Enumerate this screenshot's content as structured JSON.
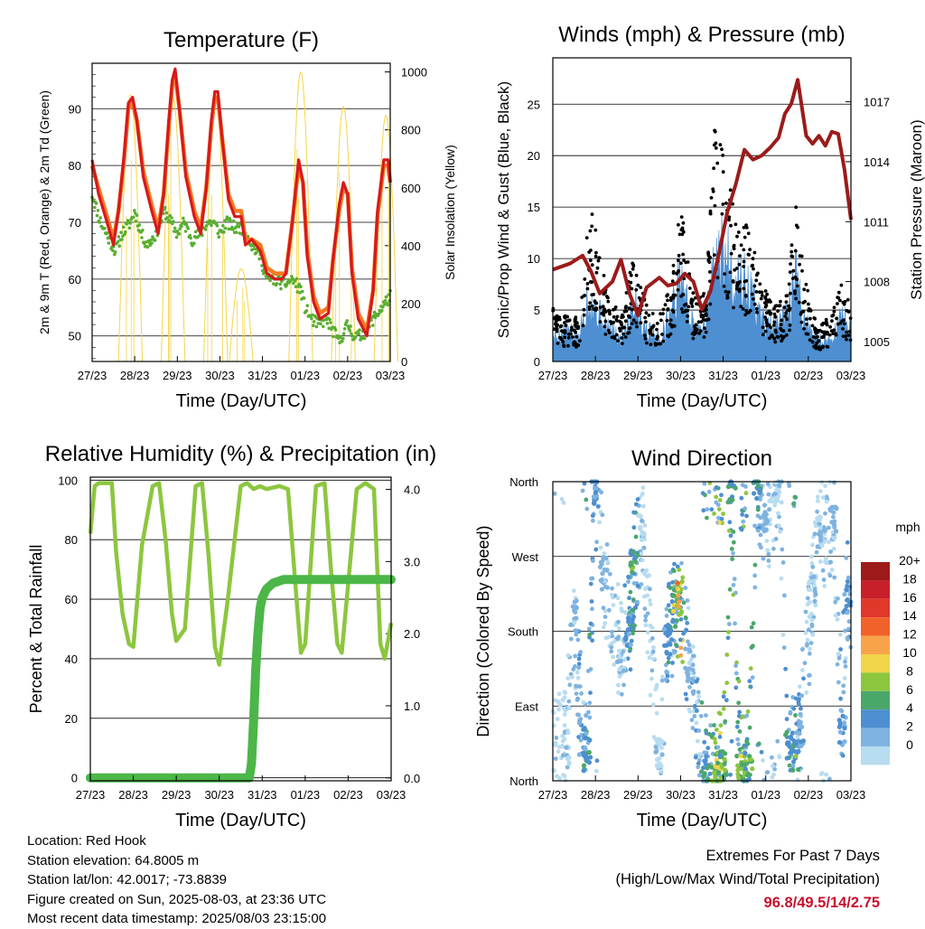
{
  "panels": {
    "temperature": {
      "title": "Temperature (F)",
      "ylabel_left": "2m & 9m T (Red, Orange) & 2m Td (Green)",
      "ylabel_right": "Solar Insolation (Yellow)",
      "xlabel": "Time (Day/UTC)"
    },
    "winds": {
      "title": "Winds (mph) & Pressure (mb)",
      "ylabel_left": "Sonic/Prop Wind & Gust (Blue, Black)",
      "ylabel_right": "Station Pressure (Maroon)",
      "xlabel": "Time (Day/UTC)"
    },
    "humidity": {
      "title": "Relative Humidity (%) & Precipitation (in)",
      "ylabel_left": "Percent & Total Rainfall",
      "xlabel": "Time (Day/UTC)"
    },
    "direction": {
      "title": "Wind Direction",
      "ylabel_left": "Direction (Colored By Speed)",
      "xlabel": "Time (Day/UTC)",
      "legend_unit": "mph"
    }
  },
  "colors": {
    "temp_2m": "#d7191c",
    "temp_9m": "#f47a20",
    "dewpoint": "#5aae32",
    "solar": "#f5d547",
    "wind_sonic": "#4d8fd0",
    "wind_gust": "#000000",
    "pressure": "#9b1b1b",
    "rh": "#8cc63f",
    "rain": "#4cb648"
  },
  "chart_data": [
    {
      "type": "line",
      "title": "Temperature (F)",
      "xlabel": "Time (Day/UTC)",
      "ylabel": "2m & 9m T (Red, Orange) & 2m Td (Green)",
      "y2label": "Solar Insolation (Yellow)",
      "x_ticks": [
        "27/23",
        "28/23",
        "29/23",
        "30/23",
        "31/23",
        "01/23",
        "02/23",
        "03/23"
      ],
      "xlim": [
        0,
        7
      ],
      "ylim": [
        45.5,
        98
      ],
      "y_ticks": [
        50,
        60,
        70,
        80,
        90
      ],
      "y2lim": [
        0,
        1030
      ],
      "y2_ticks": [
        0,
        200,
        400,
        600,
        800,
        1000
      ],
      "grid": true,
      "series": [
        {
          "name": "2m T (Red)",
          "axis": "left",
          "style": "line",
          "x": [
            0,
            0.15,
            0.35,
            0.5,
            0.62,
            0.75,
            0.85,
            0.95,
            1.05,
            1.2,
            1.4,
            1.55,
            1.68,
            1.8,
            1.88,
            1.95,
            2.05,
            2.2,
            2.4,
            2.55,
            2.68,
            2.8,
            2.88,
            2.95,
            3.05,
            3.2,
            3.35,
            3.5,
            3.6,
            3.75,
            3.95,
            4.1,
            4.3,
            4.45,
            4.55,
            4.7,
            4.85,
            4.95,
            5.05,
            5.2,
            5.35,
            5.55,
            5.65,
            5.8,
            5.9,
            6.0,
            6.1,
            6.25,
            6.45,
            6.6,
            6.7,
            6.85,
            6.95,
            7.0
          ],
          "y": [
            81,
            75,
            70,
            66,
            72,
            82,
            91,
            92,
            88,
            78,
            72,
            68,
            75,
            88,
            95,
            97,
            90,
            78,
            71,
            68,
            76,
            88,
            93,
            93,
            85,
            74,
            71,
            71,
            66,
            67,
            65,
            61,
            60,
            60,
            61,
            70,
            81,
            77,
            64,
            56,
            53,
            54,
            63,
            73,
            77,
            75,
            61,
            53,
            50,
            58,
            72,
            81,
            81,
            77
          ]
        },
        {
          "name": "9m T (Orange)",
          "axis": "left",
          "style": "line",
          "x": [
            0,
            0.15,
            0.35,
            0.5,
            0.62,
            0.75,
            0.85,
            0.95,
            1.05,
            1.2,
            1.4,
            1.55,
            1.68,
            1.8,
            1.88,
            1.95,
            2.05,
            2.2,
            2.4,
            2.55,
            2.68,
            2.8,
            2.88,
            2.95,
            3.05,
            3.2,
            3.35,
            3.5,
            3.6,
            3.75,
            3.95,
            4.1,
            4.3,
            4.45,
            4.55,
            4.7,
            4.85,
            4.95,
            5.05,
            5.2,
            5.35,
            5.55,
            5.65,
            5.8,
            5.9,
            6.0,
            6.1,
            6.25,
            6.45,
            6.6,
            6.7,
            6.85,
            6.95,
            7.0
          ],
          "y": [
            80,
            76,
            71,
            67,
            72,
            81,
            90,
            91,
            88,
            79,
            73,
            69,
            75,
            87,
            94,
            96,
            90,
            79,
            72,
            69,
            76,
            87,
            92,
            92,
            85,
            75,
            72,
            72,
            67,
            67,
            66,
            62,
            61,
            61,
            61,
            70,
            80,
            77,
            65,
            57,
            54,
            55,
            63,
            72,
            76,
            75,
            62,
            54,
            51,
            58,
            71,
            80,
            80,
            77
          ]
        },
        {
          "name": "2m Td (Green)",
          "axis": "left",
          "style": "points",
          "x": [
            0,
            0.2,
            0.4,
            0.55,
            0.7,
            0.9,
            1.0,
            1.15,
            1.3,
            1.5,
            1.7,
            1.85,
            2.0,
            2.15,
            2.35,
            2.55,
            2.7,
            2.85,
            3.0,
            3.15,
            3.35,
            3.55,
            3.75,
            3.95,
            4.1,
            4.3,
            4.5,
            4.7,
            4.9,
            5.0,
            5.15,
            5.3,
            5.5,
            5.65,
            5.8,
            6.0,
            6.15,
            6.3,
            6.45,
            6.6,
            6.8,
            7.0
          ],
          "y": [
            75,
            70,
            67,
            65,
            68,
            70,
            72,
            68,
            66,
            68,
            72,
            70,
            68,
            70,
            67,
            68,
            70,
            70,
            68,
            70,
            69,
            69,
            66,
            64,
            60,
            60,
            59,
            60,
            58,
            55,
            53,
            52,
            53,
            51,
            49,
            52,
            50,
            50,
            51,
            53,
            55,
            57
          ]
        },
        {
          "name": "Solar Insolation (Yellow)",
          "axis": "right",
          "style": "line",
          "peak_days": [
            0.9,
            1.9,
            2.9,
            3.5,
            4.9,
            5.9,
            6.9
          ],
          "peak_values": [
            920,
            910,
            920,
            320,
            1000,
            880,
            850
          ]
        }
      ]
    },
    {
      "type": "scatter",
      "title": "Winds (mph) & Pressure (mb)",
      "xlabel": "Time (Day/UTC)",
      "ylabel": "Sonic/Prop Wind & Gust (Blue, Black)",
      "y2label": "Station Pressure (Maroon)",
      "x_ticks": [
        "27/23",
        "28/23",
        "29/23",
        "30/23",
        "31/23",
        "01/23",
        "02/23",
        "03/23"
      ],
      "xlim": [
        0,
        7
      ],
      "ylim": [
        0,
        29.5
      ],
      "y_ticks": [
        0,
        5,
        10,
        15,
        20,
        25
      ],
      "y2lim": [
        1004,
        1019.2
      ],
      "y2_ticks": [
        1005,
        1008,
        1011,
        1014,
        1017
      ],
      "grid": true,
      "series": [
        {
          "name": "Sonic/Prop Wind (Blue)",
          "axis": "left",
          "style": "filled",
          "x": [
            0,
            0.3,
            0.6,
            0.8,
            1.0,
            1.3,
            1.6,
            1.9,
            2.2,
            2.5,
            2.8,
            3.0,
            3.3,
            3.6,
            3.8,
            4.0,
            4.3,
            4.6,
            4.9,
            5.2,
            5.5,
            5.7,
            5.9,
            6.2,
            6.5,
            6.8,
            7.0
          ],
          "y": [
            2,
            3,
            2,
            6,
            5,
            3,
            2,
            6,
            3,
            2,
            5,
            8,
            3,
            4,
            9,
            10,
            8,
            7,
            4,
            3,
            4,
            8,
            4,
            2,
            2,
            4,
            3
          ]
        },
        {
          "name": "Gust (Black)",
          "axis": "left",
          "style": "points",
          "x": [
            0,
            0.3,
            0.6,
            0.8,
            0.95,
            1.3,
            1.6,
            1.9,
            2.2,
            2.5,
            2.8,
            3.0,
            3.3,
            3.6,
            3.8,
            4.0,
            4.3,
            4.6,
            4.9,
            5.2,
            5.5,
            5.7,
            5.9,
            6.2,
            6.5,
            6.8,
            7.0
          ],
          "y": [
            5,
            4,
            4,
            11,
            14,
            6,
            4,
            10,
            5,
            4,
            8,
            14,
            6,
            6,
            22,
            19,
            13,
            12,
            7,
            5,
            6,
            15,
            8,
            3,
            4,
            7,
            5
          ]
        },
        {
          "name": "Station Pressure (Maroon)",
          "axis": "right",
          "style": "line",
          "x": [
            0,
            0.4,
            0.7,
            0.9,
            1.1,
            1.4,
            1.6,
            1.8,
            2.0,
            2.2,
            2.5,
            2.7,
            2.9,
            3.1,
            3.3,
            3.5,
            3.7,
            3.9,
            4.1,
            4.3,
            4.5,
            4.7,
            4.9,
            5.1,
            5.3,
            5.45,
            5.6,
            5.75,
            5.95,
            6.1,
            6.25,
            6.4,
            6.55,
            6.7,
            6.85,
            7.0
          ],
          "y": [
            1008.6,
            1008.9,
            1009.3,
            1008.5,
            1007.4,
            1008.0,
            1009.1,
            1007.4,
            1006.3,
            1007.7,
            1008.2,
            1007.8,
            1007.9,
            1008.4,
            1008.0,
            1006.6,
            1007.5,
            1009.4,
            1011.5,
            1012.9,
            1014.6,
            1014.1,
            1014.3,
            1014.7,
            1015.2,
            1016.4,
            1016.9,
            1018.1,
            1015.3,
            1014.9,
            1015.3,
            1014.8,
            1015.5,
            1015.4,
            1013.6,
            1011.1
          ]
        }
      ]
    },
    {
      "type": "line",
      "title": "Relative Humidity (%) & Precipitation (in)",
      "xlabel": "Time (Day/UTC)",
      "ylabel": "Percent & Total Rainfall",
      "x_ticks": [
        "27/23",
        "28/23",
        "29/23",
        "30/23",
        "31/23",
        "01/23",
        "02/23",
        "03/23"
      ],
      "xlim": [
        0,
        7
      ],
      "ylim": [
        -1,
        101
      ],
      "y_ticks": [
        0,
        20,
        40,
        60,
        80,
        100
      ],
      "y2lim": [
        -0.04,
        4.17
      ],
      "y2_ticks": [
        "0.0",
        "1.0",
        "2.0",
        "3.0",
        "4.0"
      ],
      "grid": true,
      "series": [
        {
          "name": "Relative Humidity",
          "axis": "left",
          "style": "line",
          "x": [
            0,
            0.1,
            0.2,
            0.5,
            0.6,
            0.75,
            0.9,
            1.0,
            1.2,
            1.45,
            1.6,
            1.75,
            1.9,
            2.0,
            2.2,
            2.45,
            2.6,
            2.75,
            2.9,
            3.0,
            3.2,
            3.5,
            3.65,
            3.8,
            3.95,
            4.1,
            4.4,
            4.6,
            4.8,
            4.9,
            5.0,
            5.25,
            5.45,
            5.6,
            5.75,
            5.85,
            6.0,
            6.2,
            6.4,
            6.6,
            6.75,
            6.85,
            7.0
          ],
          "y": [
            82,
            98,
            99,
            99,
            76,
            55,
            45,
            44,
            78,
            98,
            99,
            80,
            55,
            46,
            50,
            98,
            99,
            75,
            44,
            38,
            60,
            98,
            99,
            97,
            98,
            97,
            98,
            97,
            60,
            42,
            45,
            98,
            99,
            70,
            45,
            42,
            65,
            97,
            99,
            97,
            45,
            40,
            52
          ]
        },
        {
          "name": "Total Precipitation",
          "axis": "right",
          "style": "line",
          "x": [
            0,
            3.7,
            3.75,
            3.8,
            3.85,
            3.9,
            3.95,
            4.0,
            4.1,
            4.25,
            4.5,
            5.0,
            6.0,
            7.0
          ],
          "y": [
            0.0,
            0.0,
            0.2,
            0.8,
            1.5,
            2.0,
            2.35,
            2.5,
            2.62,
            2.7,
            2.75,
            2.75,
            2.75,
            2.75
          ]
        }
      ]
    },
    {
      "type": "scatter",
      "title": "Wind Direction",
      "xlabel": "Time (Day/UTC)",
      "ylabel": "Direction (Colored By Speed)",
      "x_ticks": [
        "27/23",
        "28/23",
        "29/23",
        "30/23",
        "31/23",
        "01/23",
        "02/23",
        "03/23"
      ],
      "xlim": [
        0,
        7
      ],
      "y_ticks": [
        "North",
        "East",
        "South",
        "West",
        "North"
      ],
      "y_values": [
        0,
        90,
        180,
        270,
        360
      ],
      "ylim": [
        0,
        360
      ],
      "grid": true,
      "colorbar": {
        "unit": "mph",
        "labels": [
          "20+",
          "18",
          "16",
          "14",
          "12",
          "10",
          "8",
          "6",
          "4",
          "2",
          "0"
        ],
        "colors": [
          "#9e1a1a",
          "#c8202a",
          "#e0382a",
          "#f0622a",
          "#f7a34a",
          "#f0d44a",
          "#8cc63f",
          "#4aa76a",
          "#4d8fd0",
          "#7fb3e0",
          "#b8dcf0"
        ]
      },
      "series": [
        {
          "name": "Direction samples",
          "style": "points",
          "x": [
            0.3,
            0.5,
            0.7,
            0.8,
            1.0,
            1.2,
            1.6,
            1.75,
            1.85,
            1.9,
            2.1,
            2.5,
            2.7,
            2.8,
            2.9,
            3.0,
            3.2,
            3.6,
            3.8,
            3.9,
            4.0,
            4.2,
            4.4,
            4.5,
            4.6,
            4.8,
            5.0,
            5.3,
            5.55,
            5.7,
            5.8,
            6.1,
            6.3,
            6.6,
            6.8,
            6.9
          ],
          "y": [
            40,
            200,
            50,
            30,
            350,
            250,
            150,
            180,
            200,
            270,
            300,
            30,
            170,
            190,
            210,
            220,
            140,
            10,
            10,
            15,
            20,
            355,
            10,
            15,
            20,
            355,
            320,
            350,
            40,
            30,
            60,
            230,
            300,
            310,
            60,
            220
          ],
          "speed": [
            2,
            3,
            5,
            6,
            5,
            3,
            2,
            5,
            6,
            7,
            2,
            2,
            5,
            6,
            9,
            12,
            3,
            6,
            9,
            10,
            8,
            7,
            8,
            9,
            8,
            6,
            3,
            2,
            6,
            7,
            4,
            2,
            2,
            3,
            4,
            5
          ]
        }
      ]
    }
  ],
  "info": {
    "location": "Location: Red Hook",
    "elevation": "Station elevation: 64.8005 m",
    "latlon": "Station lat/lon: 42.0017; -73.8839",
    "created": "Figure created on Sun, 2025-08-03, at 23:36 UTC",
    "recent": "Most recent data timestamp: 2025/08/03 23:15:00",
    "extremes_title": "Extremes For Past 7 Days",
    "extremes_desc": "(High/Low/Max Wind/Total Precipitation)",
    "extremes_values": "96.8/49.5/14/2.75"
  }
}
